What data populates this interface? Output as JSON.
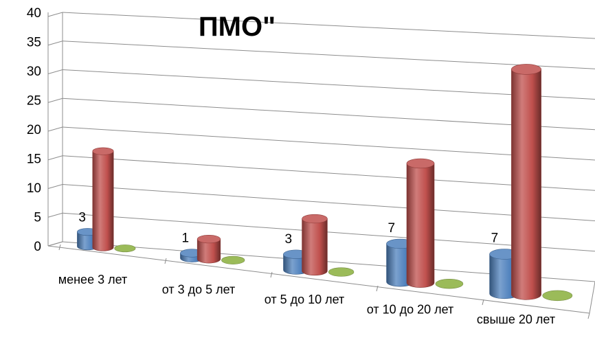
{
  "chart_data": {
    "type": "bar",
    "style": "3d-cylinder",
    "title": "ПМО\"",
    "xlabel": "",
    "ylabel": "",
    "ylim": [
      0,
      40
    ],
    "yticks": [
      "0",
      "5",
      "10",
      "15",
      "20",
      "25",
      "30",
      "35",
      "40"
    ],
    "grid": true,
    "legend": "none",
    "categories": [
      "менее 3 лет",
      "от 3 до 5 лет",
      "от 5 до 10 лет",
      "от 10 до 20 лет",
      "свыше 20 лет"
    ],
    "series": [
      {
        "values": [
          3,
          1,
          3,
          7,
          7
        ],
        "color": "#4f81bd",
        "data_labels": [
          "3",
          "1",
          "3",
          "7",
          "7"
        ]
      },
      {
        "values": [
          20,
          4,
          10,
          22,
          40
        ],
        "color": "#c0504d"
      },
      {
        "values": [
          0,
          0,
          0,
          0,
          0
        ],
        "color": "#9bbb59"
      }
    ]
  }
}
